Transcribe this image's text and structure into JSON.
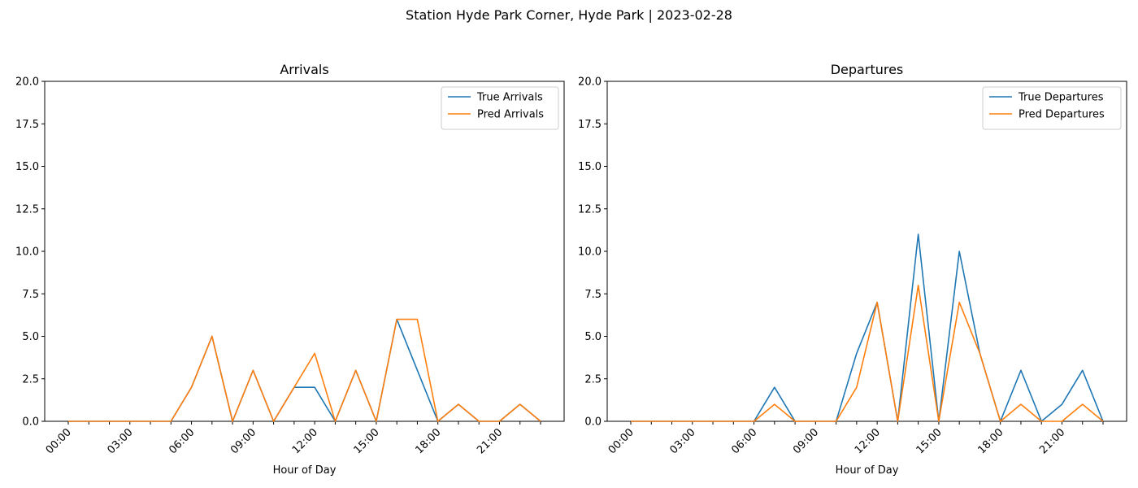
{
  "figure": {
    "suptitle": "Station Hyde Park Corner, Hyde Park | 2023-02-28"
  },
  "chart_data": [
    {
      "type": "line",
      "title": "Arrivals",
      "xlabel": "Hour of Day",
      "ylabel": "",
      "x": [
        0,
        1,
        2,
        3,
        4,
        5,
        6,
        7,
        8,
        9,
        10,
        11,
        12,
        13,
        14,
        15,
        16,
        17,
        18,
        19,
        20,
        21,
        22,
        23
      ],
      "xticks": [
        0,
        1,
        2,
        3,
        4,
        5,
        6,
        7,
        8,
        9,
        10,
        11,
        12,
        13,
        14,
        15,
        16,
        17,
        18,
        19,
        20,
        21,
        22,
        23
      ],
      "xtick_labels": [
        "00:00",
        "",
        "",
        "03:00",
        "",
        "",
        "06:00",
        "",
        "",
        "09:00",
        "",
        "",
        "12:00",
        "",
        "",
        "15:00",
        "",
        "",
        "18:00",
        "",
        "",
        "21:00",
        "",
        ""
      ],
      "ylim": [
        0,
        20
      ],
      "yticks": [
        "0.0",
        "2.5",
        "5.0",
        "7.5",
        "10.0",
        "12.5",
        "15.0",
        "17.5",
        "20.0"
      ],
      "legend": "upper-right",
      "grid": false,
      "series": [
        {
          "name": "True Arrivals",
          "color": "#1f77b4",
          "values": [
            0,
            0,
            0,
            0,
            0,
            0,
            2,
            5,
            0,
            3,
            0,
            2,
            2,
            0,
            3,
            0,
            6,
            3,
            0,
            1,
            0,
            0,
            1,
            0
          ]
        },
        {
          "name": "Pred Arrivals",
          "color": "#ff7f0e",
          "values": [
            0,
            0,
            0,
            0,
            0,
            0,
            2,
            5,
            0,
            3,
            0,
            2,
            4,
            0,
            3,
            0,
            6,
            6,
            0,
            1,
            0,
            0,
            1,
            0
          ]
        }
      ]
    },
    {
      "type": "line",
      "title": "Departures",
      "xlabel": "Hour of Day",
      "ylabel": "",
      "x": [
        0,
        1,
        2,
        3,
        4,
        5,
        6,
        7,
        8,
        9,
        10,
        11,
        12,
        13,
        14,
        15,
        16,
        17,
        18,
        19,
        20,
        21,
        22,
        23
      ],
      "xticks": [
        0,
        1,
        2,
        3,
        4,
        5,
        6,
        7,
        8,
        9,
        10,
        11,
        12,
        13,
        14,
        15,
        16,
        17,
        18,
        19,
        20,
        21,
        22,
        23
      ],
      "xtick_labels": [
        "00:00",
        "",
        "",
        "03:00",
        "",
        "",
        "06:00",
        "",
        "",
        "09:00",
        "",
        "",
        "12:00",
        "",
        "",
        "15:00",
        "",
        "",
        "18:00",
        "",
        "",
        "21:00",
        "",
        ""
      ],
      "ylim": [
        0,
        20
      ],
      "yticks": [
        "0.0",
        "2.5",
        "5.0",
        "7.5",
        "10.0",
        "12.5",
        "15.0",
        "17.5",
        "20.0"
      ],
      "legend": "upper-right",
      "grid": false,
      "series": [
        {
          "name": "True Departures",
          "color": "#1f77b4",
          "values": [
            0,
            0,
            0,
            0,
            0,
            0,
            0,
            2,
            0,
            0,
            0,
            4,
            7,
            0,
            11,
            0,
            10,
            4,
            0,
            3,
            0,
            1,
            3,
            0
          ]
        },
        {
          "name": "Pred Departures",
          "color": "#ff7f0e",
          "values": [
            0,
            0,
            0,
            0,
            0,
            0,
            0,
            1,
            0,
            0,
            0,
            2,
            7,
            0,
            8,
            0,
            7,
            4,
            0,
            1,
            0,
            0,
            1,
            0
          ]
        }
      ]
    }
  ]
}
